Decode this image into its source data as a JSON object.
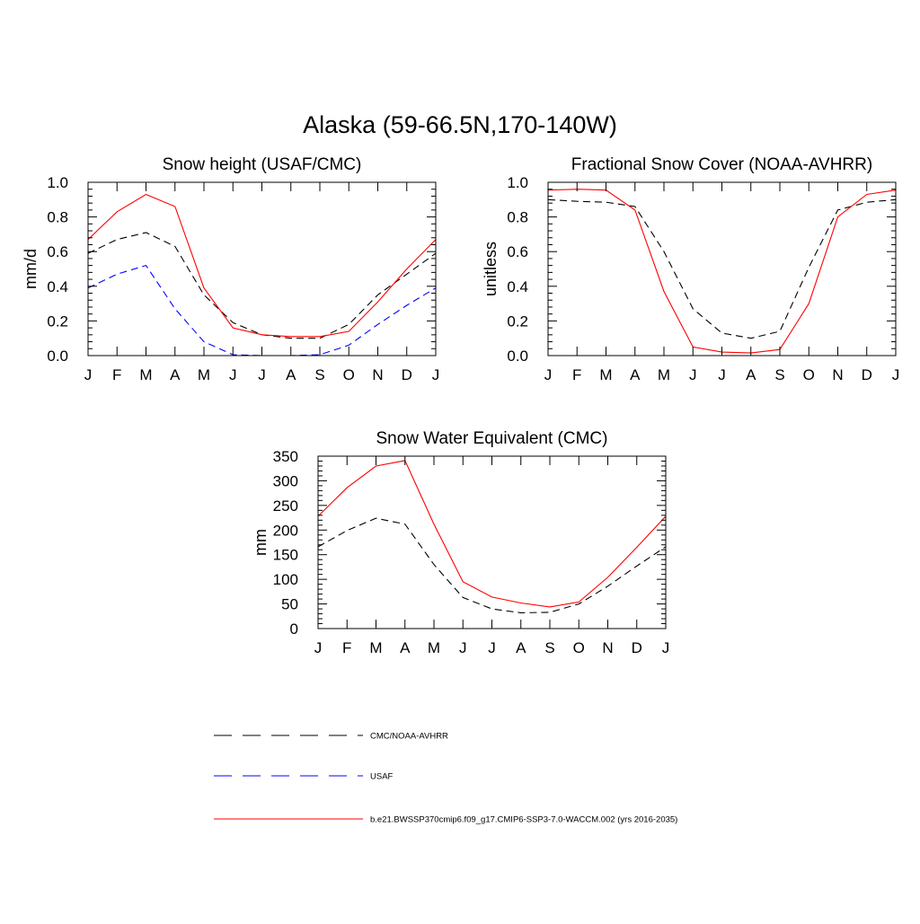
{
  "title": "Alaska (59-66.5N,170-140W)",
  "colors": {
    "obs": "#000000",
    "usaf": "#0000ff",
    "model": "#ff0000"
  },
  "legend": [
    {
      "label": "CMC/NOAA-AVHRR",
      "color": "#000000",
      "dash": true
    },
    {
      "label": "USAF",
      "color": "#0000ff",
      "dash": true
    },
    {
      "label": "b.e21.BWSSP370cmip6.f09_g17.CMIP6-SSP3-7.0-WACCM.002 (yrs 2016-2035)",
      "color": "#ff0000",
      "dash": false
    }
  ],
  "chart_data": [
    {
      "type": "line",
      "title": "Snow height (USAF/CMC)",
      "ylabel": "mm/d",
      "xlabel": "",
      "categories": [
        "J",
        "F",
        "M",
        "A",
        "M",
        "J",
        "J",
        "A",
        "S",
        "O",
        "N",
        "D",
        "J"
      ],
      "ylim": [
        0,
        1
      ],
      "yticks": [
        "0.0",
        "0.2",
        "0.4",
        "0.6",
        "0.8",
        "1.0"
      ],
      "yticks_values": [
        0,
        0.2,
        0.4,
        0.6,
        0.8,
        1.0
      ],
      "series": [
        {
          "name": "CMC/NOAA-AVHRR",
          "color": "#000000",
          "dash": true,
          "values": [
            0.59,
            0.67,
            0.71,
            0.63,
            0.35,
            0.19,
            0.12,
            0.1,
            0.1,
            0.18,
            0.35,
            0.47,
            0.59
          ]
        },
        {
          "name": "USAF",
          "color": "#0000ff",
          "dash": true,
          "values": [
            0.39,
            0.47,
            0.52,
            0.27,
            0.08,
            0.005,
            0.0,
            0.0,
            0.005,
            0.06,
            0.18,
            0.29,
            0.39
          ]
        },
        {
          "name": "b.e21.BWSSP370cmip6.f09_g17.CMIP6-SSP3-7.0-WACCM.002 (yrs 2016-2035)",
          "color": "#ff0000",
          "dash": false,
          "values": [
            0.67,
            0.83,
            0.93,
            0.86,
            0.39,
            0.16,
            0.12,
            0.11,
            0.11,
            0.14,
            0.31,
            0.5,
            0.67
          ]
        }
      ]
    },
    {
      "type": "line",
      "title": "Fractional Snow Cover (NOAA-AVHRR)",
      "ylabel": "unitless",
      "xlabel": "",
      "categories": [
        "J",
        "F",
        "M",
        "A",
        "M",
        "J",
        "J",
        "A",
        "S",
        "O",
        "N",
        "D",
        "J"
      ],
      "ylim": [
        0,
        1
      ],
      "yticks": [
        "0.0",
        "0.2",
        "0.4",
        "0.6",
        "0.8",
        "1.0"
      ],
      "yticks_values": [
        0,
        0.2,
        0.4,
        0.6,
        0.8,
        1.0
      ],
      "series": [
        {
          "name": "CMC/NOAA-AVHRR",
          "color": "#000000",
          "dash": true,
          "values": [
            0.9,
            0.89,
            0.885,
            0.86,
            0.6,
            0.27,
            0.13,
            0.1,
            0.14,
            0.51,
            0.84,
            0.885,
            0.9
          ]
        },
        {
          "name": "b.e21.BWSSP370cmip6.f09_g17.CMIP6-SSP3-7.0-WACCM.002 (yrs 2016-2035)",
          "color": "#ff0000",
          "dash": false,
          "values": [
            0.955,
            0.96,
            0.955,
            0.84,
            0.37,
            0.05,
            0.02,
            0.015,
            0.035,
            0.3,
            0.8,
            0.93,
            0.955
          ]
        }
      ]
    },
    {
      "type": "line",
      "title": "Snow Water Equivalent (CMC)",
      "ylabel": "mm",
      "xlabel": "",
      "categories": [
        "J",
        "F",
        "M",
        "A",
        "M",
        "J",
        "J",
        "A",
        "S",
        "O",
        "N",
        "D",
        "J"
      ],
      "ylim": [
        0,
        350
      ],
      "yticks": [
        "0",
        "50",
        "100",
        "150",
        "200",
        "250",
        "300",
        "350"
      ],
      "yticks_values": [
        0,
        50,
        100,
        150,
        200,
        250,
        300,
        350
      ],
      "series": [
        {
          "name": "CMC/NOAA-AVHRR",
          "color": "#000000",
          "dash": true,
          "values": [
            166,
            199,
            224,
            212,
            130,
            63,
            40,
            32,
            33,
            50,
            86,
            127,
            166
          ]
        },
        {
          "name": "b.e21.BWSSP370cmip6.f09_g17.CMIP6-SSP3-7.0-WACCM.002 (yrs 2016-2035)",
          "color": "#ff0000",
          "dash": false,
          "values": [
            228,
            286,
            330,
            341,
            212,
            95,
            64,
            52,
            44,
            54,
            104,
            165,
            228
          ]
        }
      ]
    }
  ]
}
